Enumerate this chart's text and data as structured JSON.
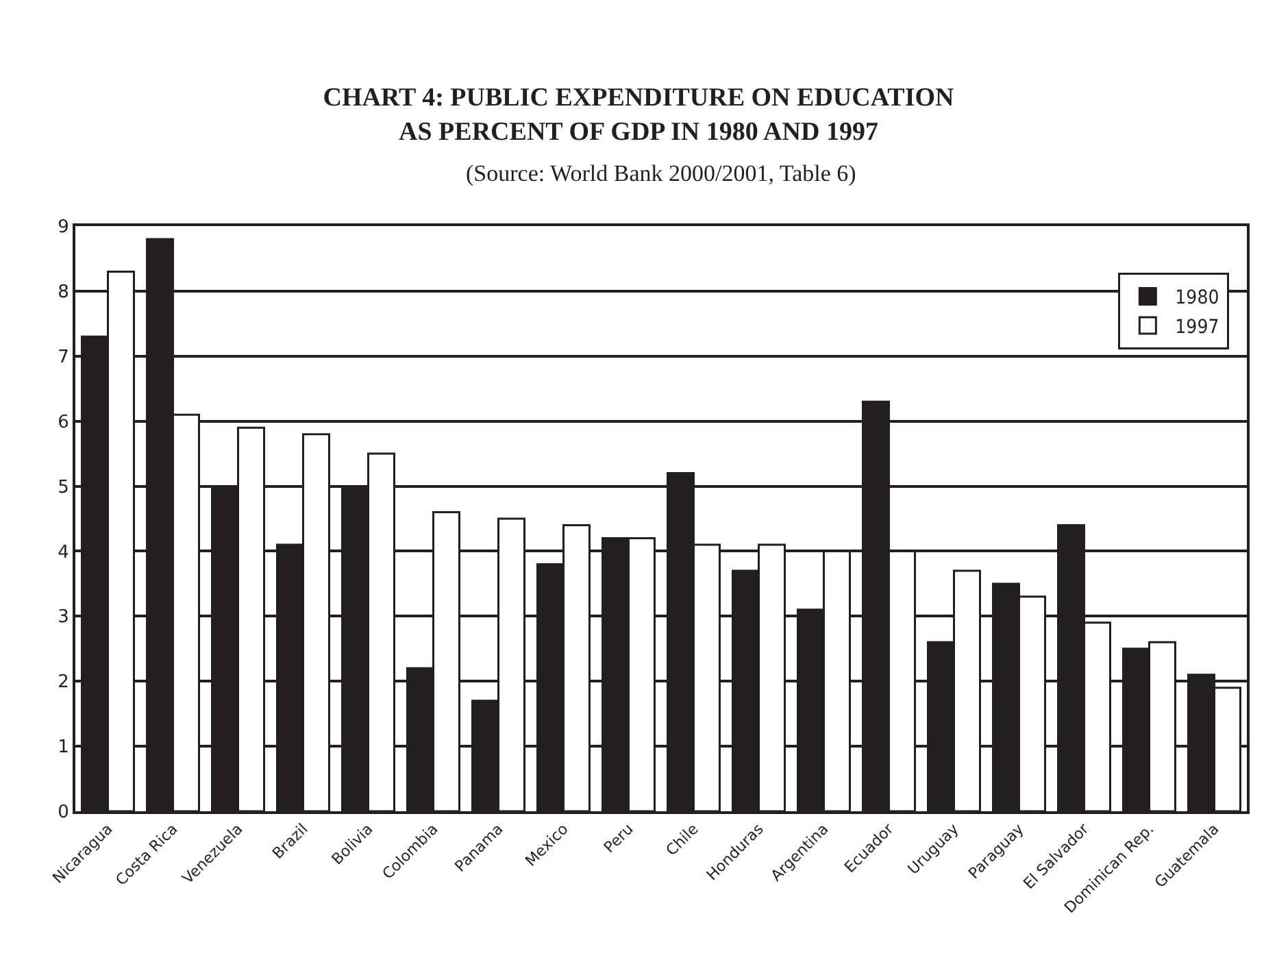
{
  "chart_data": {
    "type": "bar",
    "title": "CHART 4: PUBLIC EXPENDITURE ON EDUCATION AS PERCENT OF GDP IN 1980 AND 1997",
    "subtitle": "(Source: World Bank 2000/2001, Table 6)",
    "categories": [
      "Nicaragua",
      "Costa Rica",
      "Venezuela",
      "Brazil",
      "Bolivia",
      "Colombia",
      "Panama",
      "Mexico",
      "Peru",
      "Chile",
      "Honduras",
      "Argentina",
      "Ecuador",
      "Uruguay",
      "Paraguay",
      "El Salvador",
      "Dominican Rep.",
      "Guatemala"
    ],
    "series": [
      {
        "name": "1980",
        "color": "#231f20",
        "values": [
          7.3,
          8.8,
          5.0,
          4.1,
          5.0,
          2.2,
          1.7,
          3.8,
          4.2,
          5.2,
          3.7,
          3.1,
          6.3,
          2.6,
          3.5,
          4.4,
          2.5,
          2.1
        ]
      },
      {
        "name": "1997",
        "color": "#ffffff",
        "values": [
          8.3,
          6.1,
          5.9,
          5.8,
          5.5,
          4.6,
          4.5,
          4.4,
          4.2,
          4.1,
          4.1,
          4.0,
          4.0,
          3.7,
          3.3,
          2.9,
          2.6,
          1.9
        ]
      }
    ],
    "ylim": [
      0,
      9
    ],
    "yticks": [
      0,
      1,
      2,
      3,
      4,
      5,
      6,
      7,
      8,
      9
    ],
    "grid": "y",
    "legend": "top right"
  }
}
